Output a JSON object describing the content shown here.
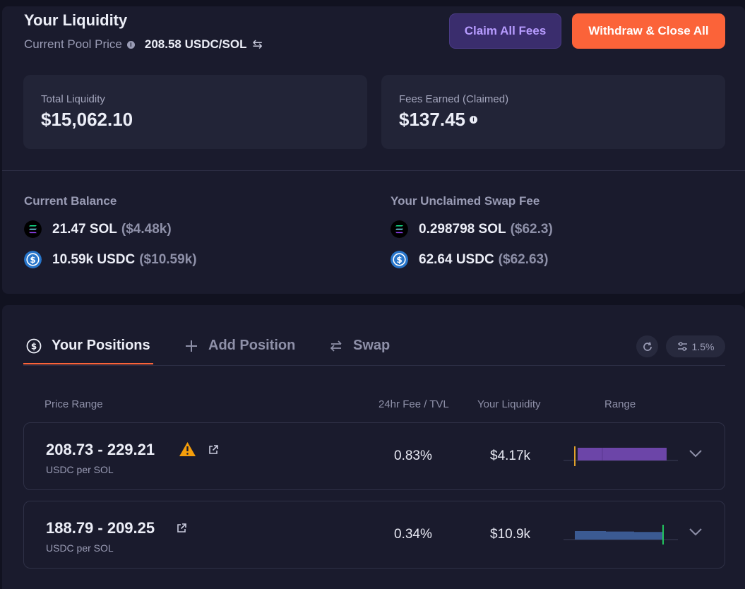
{
  "header": {
    "title": "Your Liquidity",
    "pool_price_label": "Current Pool Price",
    "pool_price_value": "208.58 USDC/SOL",
    "claim_button": "Claim All Fees",
    "withdraw_button": "Withdraw & Close All"
  },
  "stats": {
    "total_liquidity_label": "Total Liquidity",
    "total_liquidity_value": "$15,062.10",
    "fees_label": "Fees Earned (Claimed)",
    "fees_value": "$137.45"
  },
  "balance": {
    "heading": "Current Balance",
    "sol_amount": "21.47 SOL",
    "sol_usd": "($4.48k)",
    "usdc_amount": "10.59k USDC",
    "usdc_usd": "($10.59k)"
  },
  "unclaimed": {
    "heading": "Your Unclaimed Swap Fee",
    "sol_amount": "0.298798 SOL",
    "sol_usd": "($62.3)",
    "usdc_amount": "62.64 USDC",
    "usdc_usd": "($62.63)"
  },
  "tabs": [
    {
      "label": "Your Positions"
    },
    {
      "label": "Add Position"
    },
    {
      "label": "Swap"
    }
  ],
  "slippage": "1.5%",
  "table": {
    "headers": [
      "Price Range",
      "24hr Fee / TVL",
      "Your Liquidity",
      "Range"
    ],
    "rows": [
      {
        "range": "208.73 - 229.21",
        "unit": "USDC per SOL",
        "fee_tvl": "0.83%",
        "liquidity": "$4.17k",
        "warning": true
      },
      {
        "range": "188.79 - 209.25",
        "unit": "USDC per SOL",
        "fee_tvl": "0.34%",
        "liquidity": "$10.9k",
        "warning": false
      }
    ]
  },
  "colors": {
    "accent": "#fb6339",
    "claim": "#b79cff",
    "range_purple": "#6c45a8",
    "range_blue": "#3b5a92",
    "marker_orange": "#e0a12b",
    "marker_green": "#22c55e"
  }
}
